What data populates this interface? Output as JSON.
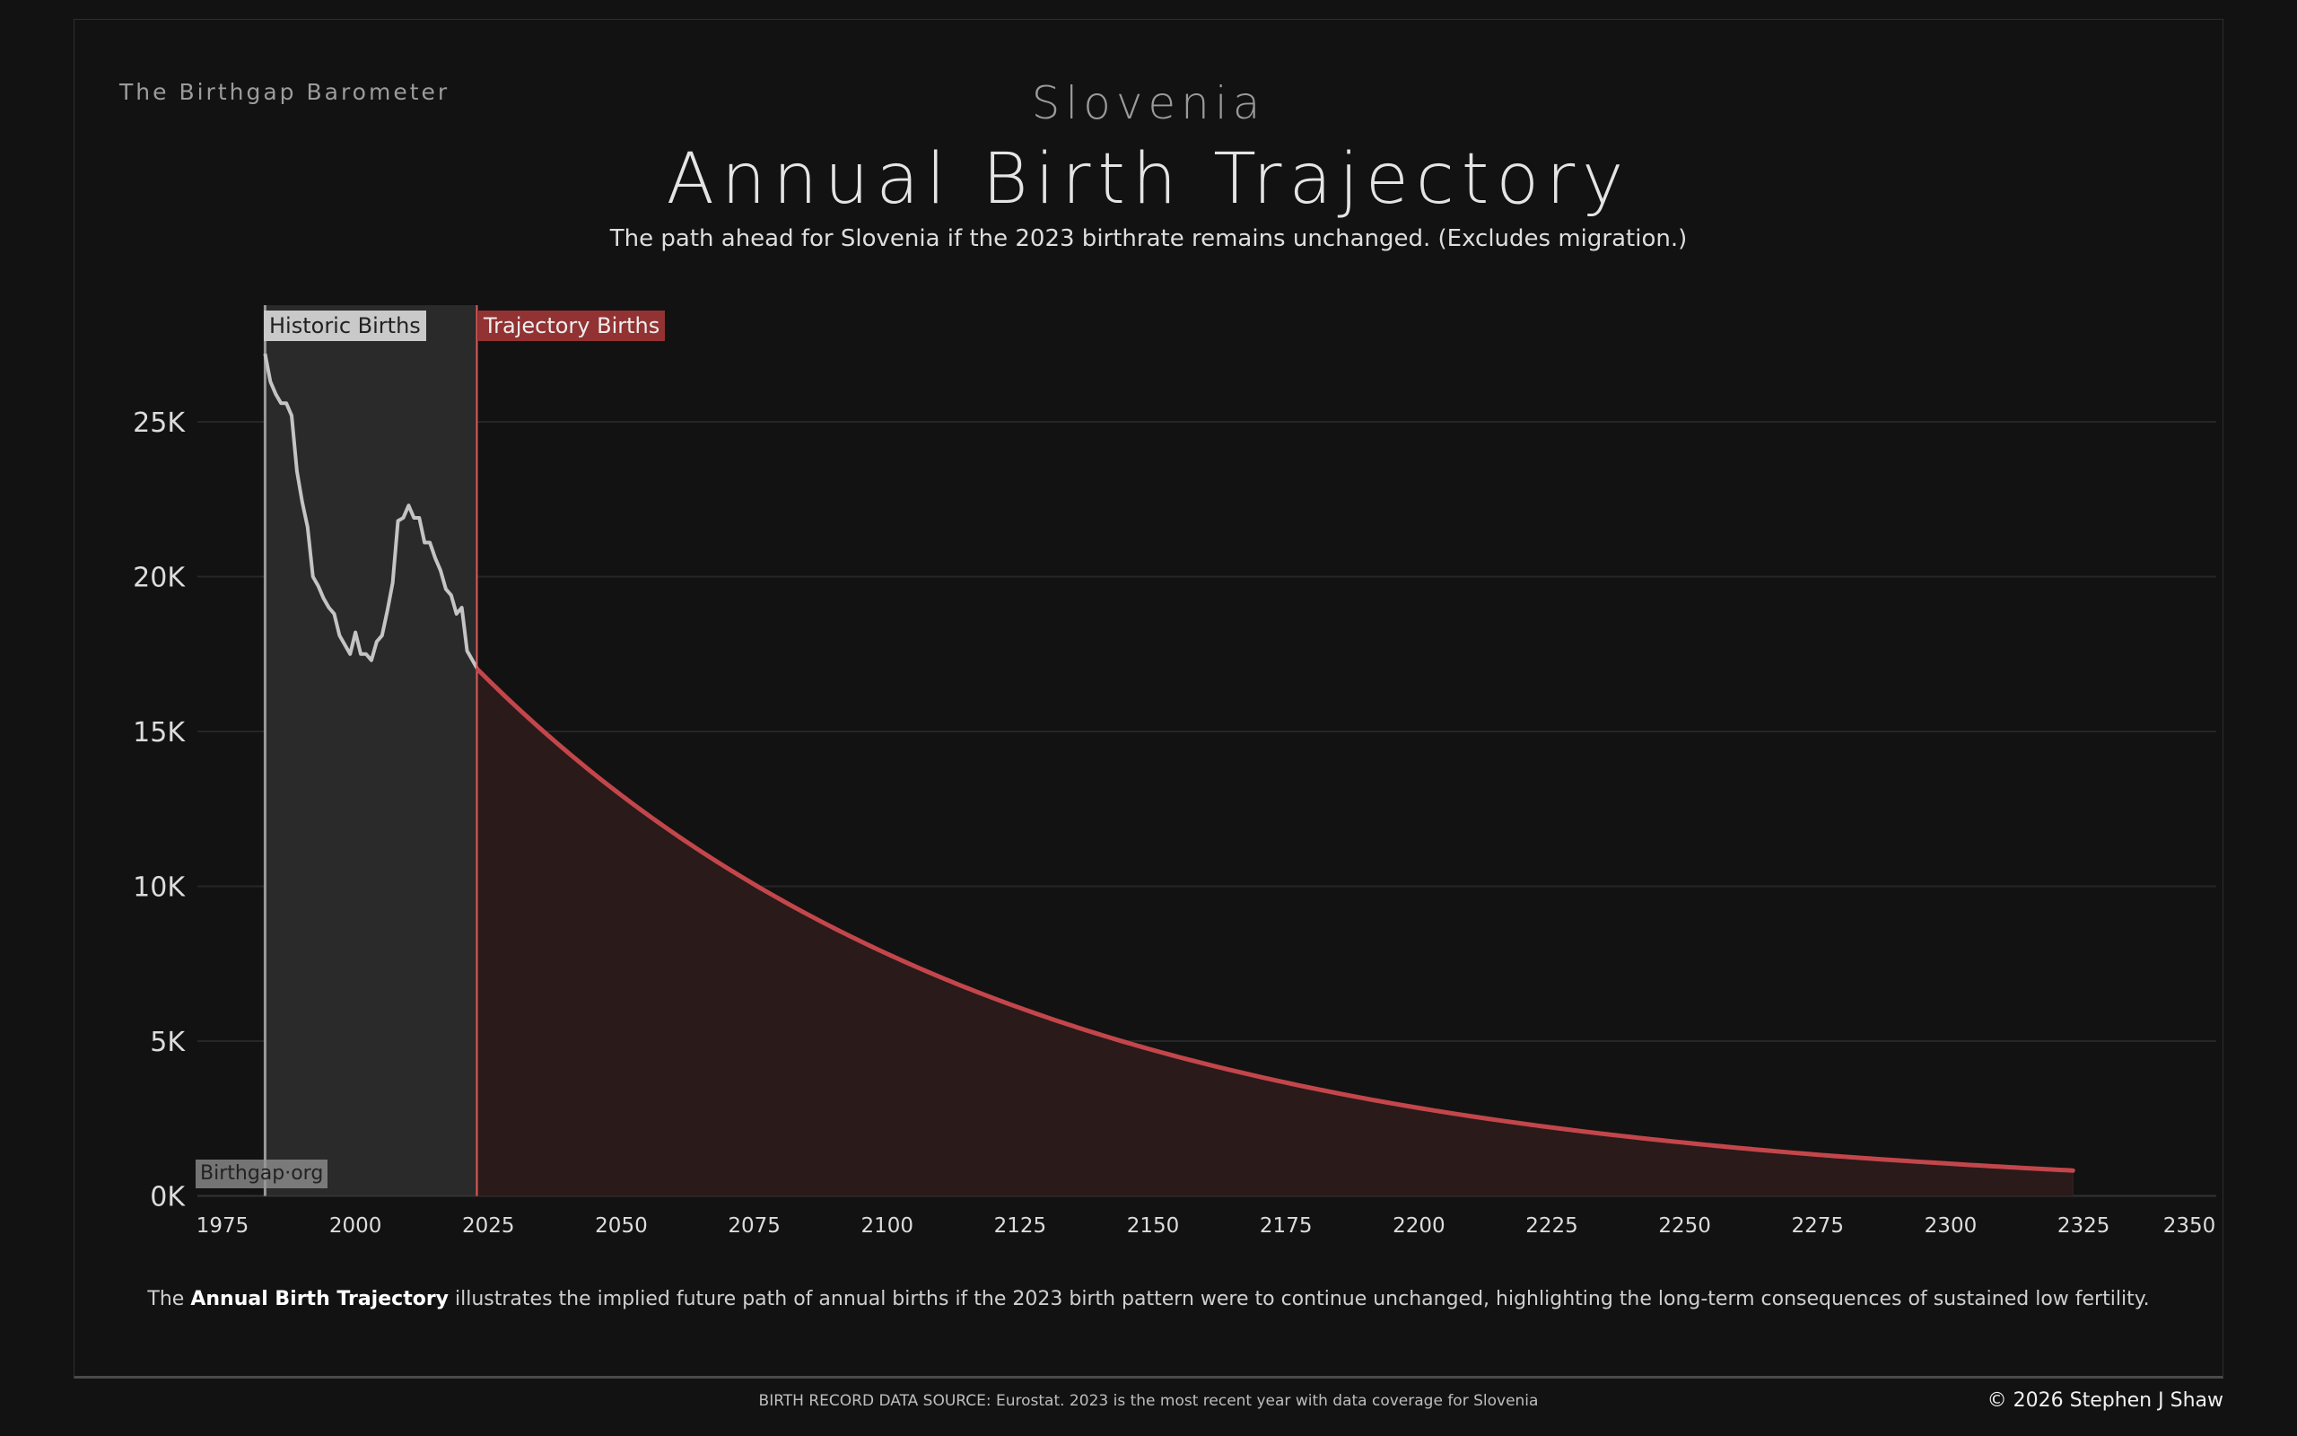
{
  "header": {
    "brand": "The Birthgap Barometer",
    "country": "Slovenia",
    "title": "Annual Birth Trajectory",
    "subtitle": "The path ahead for Slovenia if the 2023 birthrate remains unchanged.  (Excludes migration.)"
  },
  "footer": {
    "note_prefix": "The ",
    "note_bold": "Annual Birth Trajectory",
    "note_rest": " illustrates the implied future path of annual births if the 2023 birth pattern were to continue unchanged, highlighting the long-term consequences of sustained low fertility.",
    "source": "BIRTH RECORD DATA SOURCE: Eurostat. 2023 is the most recent year with data coverage for Slovenia",
    "copyright": "© 2026 Stephen J Shaw"
  },
  "watermark": "Birthgap·org",
  "colors": {
    "historic_line": "#c4c4c4",
    "historic_fill": "#2a2a2a",
    "trajectory_line": "#c3464b",
    "trajectory_fill": "#2a1a1a",
    "divider": "#e05a5a"
  },
  "chart_data": {
    "type": "area",
    "title": "Annual Birth Trajectory",
    "xlabel": "",
    "ylabel": "",
    "xlim": [
      1975,
      2350
    ],
    "ylim": [
      0,
      28000
    ],
    "grid": true,
    "x_ticks": [
      "1975",
      "2000",
      "2025",
      "2050",
      "2075",
      "2100",
      "2125",
      "2150",
      "2175",
      "2200",
      "2225",
      "2250",
      "2275",
      "2300",
      "2325",
      "2350"
    ],
    "y_ticks": [
      {
        "value": 0,
        "label": "0K"
      },
      {
        "value": 5000,
        "label": "5K"
      },
      {
        "value": 10000,
        "label": "10K"
      },
      {
        "value": 15000,
        "label": "15K"
      },
      {
        "value": 20000,
        "label": "20K"
      },
      {
        "value": 25000,
        "label": "25K"
      }
    ],
    "series": [
      {
        "name": "Historic Births",
        "x": [
          1983,
          1984,
          1985,
          1986,
          1987,
          1988,
          1989,
          1990,
          1991,
          1992,
          1993,
          1994,
          1995,
          1996,
          1997,
          1998,
          1999,
          2000,
          2001,
          2002,
          2003,
          2004,
          2005,
          2006,
          2007,
          2008,
          2009,
          2010,
          2011,
          2012,
          2013,
          2014,
          2015,
          2016,
          2017,
          2018,
          2019,
          2020,
          2021,
          2022,
          2023
        ],
        "values": [
          27200,
          26300,
          25900,
          25600,
          25600,
          25200,
          23400,
          22400,
          21600,
          20000,
          19700,
          19300,
          19000,
          18800,
          18100,
          17800,
          17500,
          18200,
          17500,
          17500,
          17300,
          17900,
          18100,
          18900,
          19800,
          21800,
          21900,
          22300,
          21900,
          21900,
          21100,
          21100,
          20600,
          20200,
          19600,
          19400,
          18800,
          19000,
          17600,
          17300,
          17000
        ]
      },
      {
        "name": "Trajectory Births",
        "x": [
          2023,
          2025,
          2050,
          2075,
          2100,
          2125,
          2150,
          2175,
          2200,
          2225,
          2250,
          2275,
          2300,
          2323
        ],
        "values": [
          17000,
          16660,
          12940,
          10060,
          7820,
          6070,
          4710,
          3660,
          2840,
          2210,
          1720,
          1330,
          1040,
          820
        ]
      }
    ]
  }
}
